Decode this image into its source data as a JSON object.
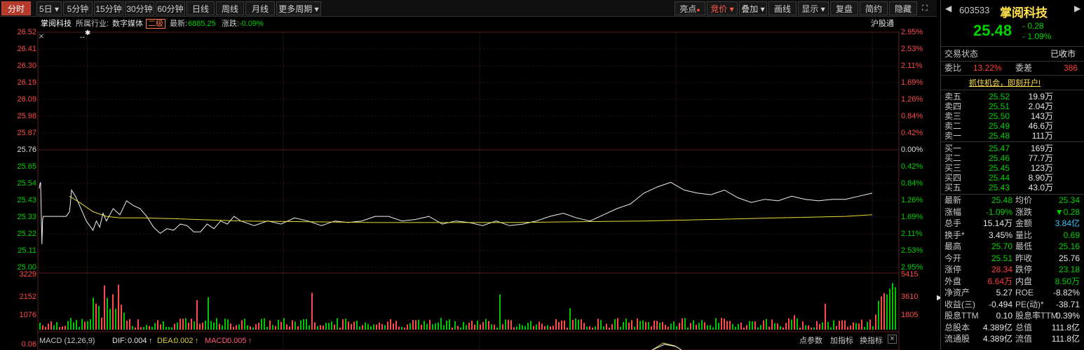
{
  "toolbar": {
    "tabs_left": [
      "分时",
      "5日",
      "5分钟",
      "15分钟",
      "30分钟",
      "60分钟",
      "日线",
      "周线",
      "月线",
      "更多周期"
    ],
    "tabs_right": [
      "亮点",
      "竞价",
      "叠加",
      "画线",
      "显示",
      "复盘",
      "简约",
      "隐藏"
    ],
    "dropdown_arrow": "▾",
    "window_icons": [
      "restore-icon",
      "fullscreen-icon"
    ]
  },
  "chart": {
    "stock_name": "掌阅科技",
    "industry_label": "所属行业:",
    "industry_value": "数字媒体",
    "level_badge": "二级",
    "latest_label": "最新:",
    "latest_value": "6885.25",
    "change_label": "涨跌:",
    "change_value": "-0.09%",
    "index_label": "沪股通",
    "close_icon": "×",
    "drag_icon": "↔",
    "star_icon": "✱",
    "macd_label": "MACD (12,26,9)",
    "dif_label": "DIF:",
    "dif_value": "0.004",
    "dea_label": "DEA:",
    "dea_value": "0.002",
    "macd_value_label": "MACD:",
    "macd_value": "0.005",
    "up_arrow": "↑",
    "bottom_buttons": [
      "点参数",
      "加指标",
      "换指标"
    ],
    "price_ticks": [
      "26.52",
      "26.41",
      "26.30",
      "26.19",
      "26.09",
      "25.98",
      "25.87",
      "25.76",
      "25.65",
      "25.54",
      "25.43",
      "25.33",
      "25.22",
      "25.11",
      "25.00"
    ],
    "pct_ticks": [
      "2.95%",
      "2.53%",
      "2.11%",
      "1.69%",
      "1.26%",
      "0.84%",
      "0.42%",
      "0.00%",
      "0.42%",
      "0.84%",
      "1.26%",
      "1.69%",
      "2.11%",
      "2.53%",
      "2.95%"
    ],
    "vol_ticks_left": [
      "3229",
      "2152",
      "1076",
      "0.06"
    ],
    "vol_ticks_right": [
      "5415",
      "3610",
      "1805"
    ]
  },
  "chart_data": {
    "type": "line",
    "title": "掌阅科技",
    "ylim": [
      25.0,
      26.52
    ],
    "prev_close": 25.76,
    "series": [
      {
        "name": "price",
        "x": [
          0,
          1,
          2,
          3,
          4,
          5,
          6,
          10,
          20,
          30,
          40,
          45,
          46,
          48,
          55,
          60,
          70,
          80,
          85,
          90,
          95,
          100,
          110,
          120,
          130,
          140,
          150,
          160,
          170,
          180,
          190,
          200,
          210,
          220,
          230,
          240,
          250,
          260,
          270,
          280,
          290,
          300,
          320,
          340,
          360,
          380,
          400,
          420,
          440,
          460,
          480,
          500,
          520,
          540,
          560,
          580,
          600,
          620,
          640,
          660,
          680,
          700,
          720,
          740,
          760,
          780,
          800,
          820,
          840,
          860,
          880,
          900,
          920,
          940,
          960,
          980,
          1000,
          1020,
          1040,
          1060,
          1080,
          1100,
          1120,
          1140,
          1160,
          1180,
          1200,
          1220,
          1240
        ],
        "values": [
          25.51,
          25.54,
          25.55,
          25.34,
          25.15,
          25.31,
          25.33,
          25.33,
          25.33,
          25.33,
          25.33,
          25.36,
          25.4,
          25.5,
          25.45,
          25.4,
          25.3,
          25.24,
          25.3,
          25.26,
          25.35,
          25.3,
          25.38,
          25.34,
          25.43,
          25.4,
          25.38,
          25.33,
          25.26,
          25.22,
          25.25,
          25.24,
          25.28,
          25.27,
          25.23,
          25.23,
          25.28,
          25.25,
          25.3,
          25.28,
          25.33,
          25.3,
          25.27,
          25.3,
          25.28,
          25.32,
          25.3,
          25.27,
          25.3,
          25.29,
          25.3,
          25.33,
          25.33,
          25.3,
          25.31,
          25.33,
          25.28,
          25.3,
          25.29,
          25.27,
          25.3,
          25.27,
          25.28,
          25.3,
          25.33,
          25.35,
          25.32,
          25.3,
          25.34,
          25.38,
          25.41,
          25.48,
          25.52,
          25.55,
          25.5,
          25.48,
          25.47,
          25.5,
          25.45,
          25.42,
          25.44,
          25.43,
          25.46,
          25.44,
          25.43,
          25.44,
          25.44,
          25.46,
          25.48
        ]
      },
      {
        "name": "average",
        "x": [
          45,
          60,
          80,
          100,
          120,
          150,
          200,
          300,
          400,
          500,
          600,
          700,
          800,
          900,
          1000,
          1100,
          1200,
          1240
        ],
        "values": [
          25.46,
          25.42,
          25.36,
          25.33,
          25.32,
          25.32,
          25.315,
          25.3,
          25.295,
          25.29,
          25.29,
          25.29,
          25.295,
          25.3,
          25.31,
          25.32,
          25.33,
          25.34
        ]
      }
    ]
  },
  "panel": {
    "code": "603533",
    "name": "掌阅科技",
    "price": "25.48",
    "change": "- 0.28",
    "change_pct": "- 1.09%",
    "arrow_left": "◀",
    "arrow_right": "▶",
    "status_label": "交易状态",
    "status_value": "已收市",
    "weibi_label": "委比",
    "weibi_value": "13.22%",
    "weicha_label": "委差",
    "weicha_value": "386",
    "promo": "抓住机会，即刻开户!",
    "asks": [
      {
        "label": "卖五",
        "price": "25.52",
        "vol": "19.9万"
      },
      {
        "label": "卖四",
        "price": "25.51",
        "vol": "2.04万"
      },
      {
        "label": "卖三",
        "price": "25.50",
        "vol": "143万"
      },
      {
        "label": "卖二",
        "price": "25.49",
        "vol": "46.6万"
      },
      {
        "label": "卖一",
        "price": "25.48",
        "vol": "111万"
      }
    ],
    "bids": [
      {
        "label": "买一",
        "price": "25.47",
        "vol": "169万"
      },
      {
        "label": "买二",
        "price": "25.46",
        "vol": "77.7万"
      },
      {
        "label": "买三",
        "price": "25.45",
        "vol": "123万"
      },
      {
        "label": "买四",
        "price": "25.44",
        "vol": "8.90万"
      },
      {
        "label": "买五",
        "price": "25.43",
        "vol": "43.0万"
      }
    ],
    "stats": [
      {
        "l1": "最新",
        "v1": "25.48",
        "c1": "green",
        "l2": "均价",
        "v2": "25.34",
        "c2": "green"
      },
      {
        "l1": "涨幅",
        "v1": "-1.09%",
        "c1": "green",
        "l2": "涨跌",
        "v2": "▼0.28",
        "c2": "green"
      },
      {
        "l1": "总手",
        "v1": "15.14万",
        "c1": "white",
        "l2": "金额",
        "v2": "3.84亿",
        "c2": "cyan"
      },
      {
        "l1": "换手*",
        "v1": "3.45%",
        "c1": "white",
        "l2": "量比",
        "v2": "0.69",
        "c2": "green"
      },
      {
        "l1": "最高",
        "v1": "25.70",
        "c1": "green",
        "l2": "最低",
        "v2": "25.16",
        "c2": "green"
      },
      {
        "l1": "今开",
        "v1": "25.51",
        "c1": "green",
        "l2": "昨收",
        "v2": "25.76",
        "c2": "white"
      },
      {
        "l1": "涨停",
        "v1": "28.34",
        "c1": "red",
        "l2": "跌停",
        "v2": "23.18",
        "c2": "green"
      },
      {
        "l1": "外盘",
        "v1": "6.64万",
        "c1": "red",
        "l2": "内盘",
        "v2": "8.50万",
        "c2": "green"
      },
      {
        "l1": "净资产",
        "v1": "5.27",
        "c1": "white",
        "l2": "ROE",
        "v2": "-8.82%",
        "c2": "white"
      },
      {
        "l1": "收益(三)",
        "v1": "-0.494",
        "c1": "white",
        "l2": "PE(动)*",
        "v2": "-38.71",
        "c2": "white"
      },
      {
        "l1": "股息TTM",
        "v1": "0.10",
        "c1": "white",
        "l2": "股息率TTM",
        "v2": "0.39%",
        "c2": "white"
      },
      {
        "l1": "总股本",
        "v1": "4.389亿",
        "c1": "white",
        "l2": "总值",
        "v2": "111.8亿",
        "c2": "white"
      },
      {
        "l1": "流通股",
        "v1": "4.389亿",
        "c1": "white",
        "l2": "流值",
        "v2": "111.8亿",
        "c2": "white"
      }
    ]
  }
}
